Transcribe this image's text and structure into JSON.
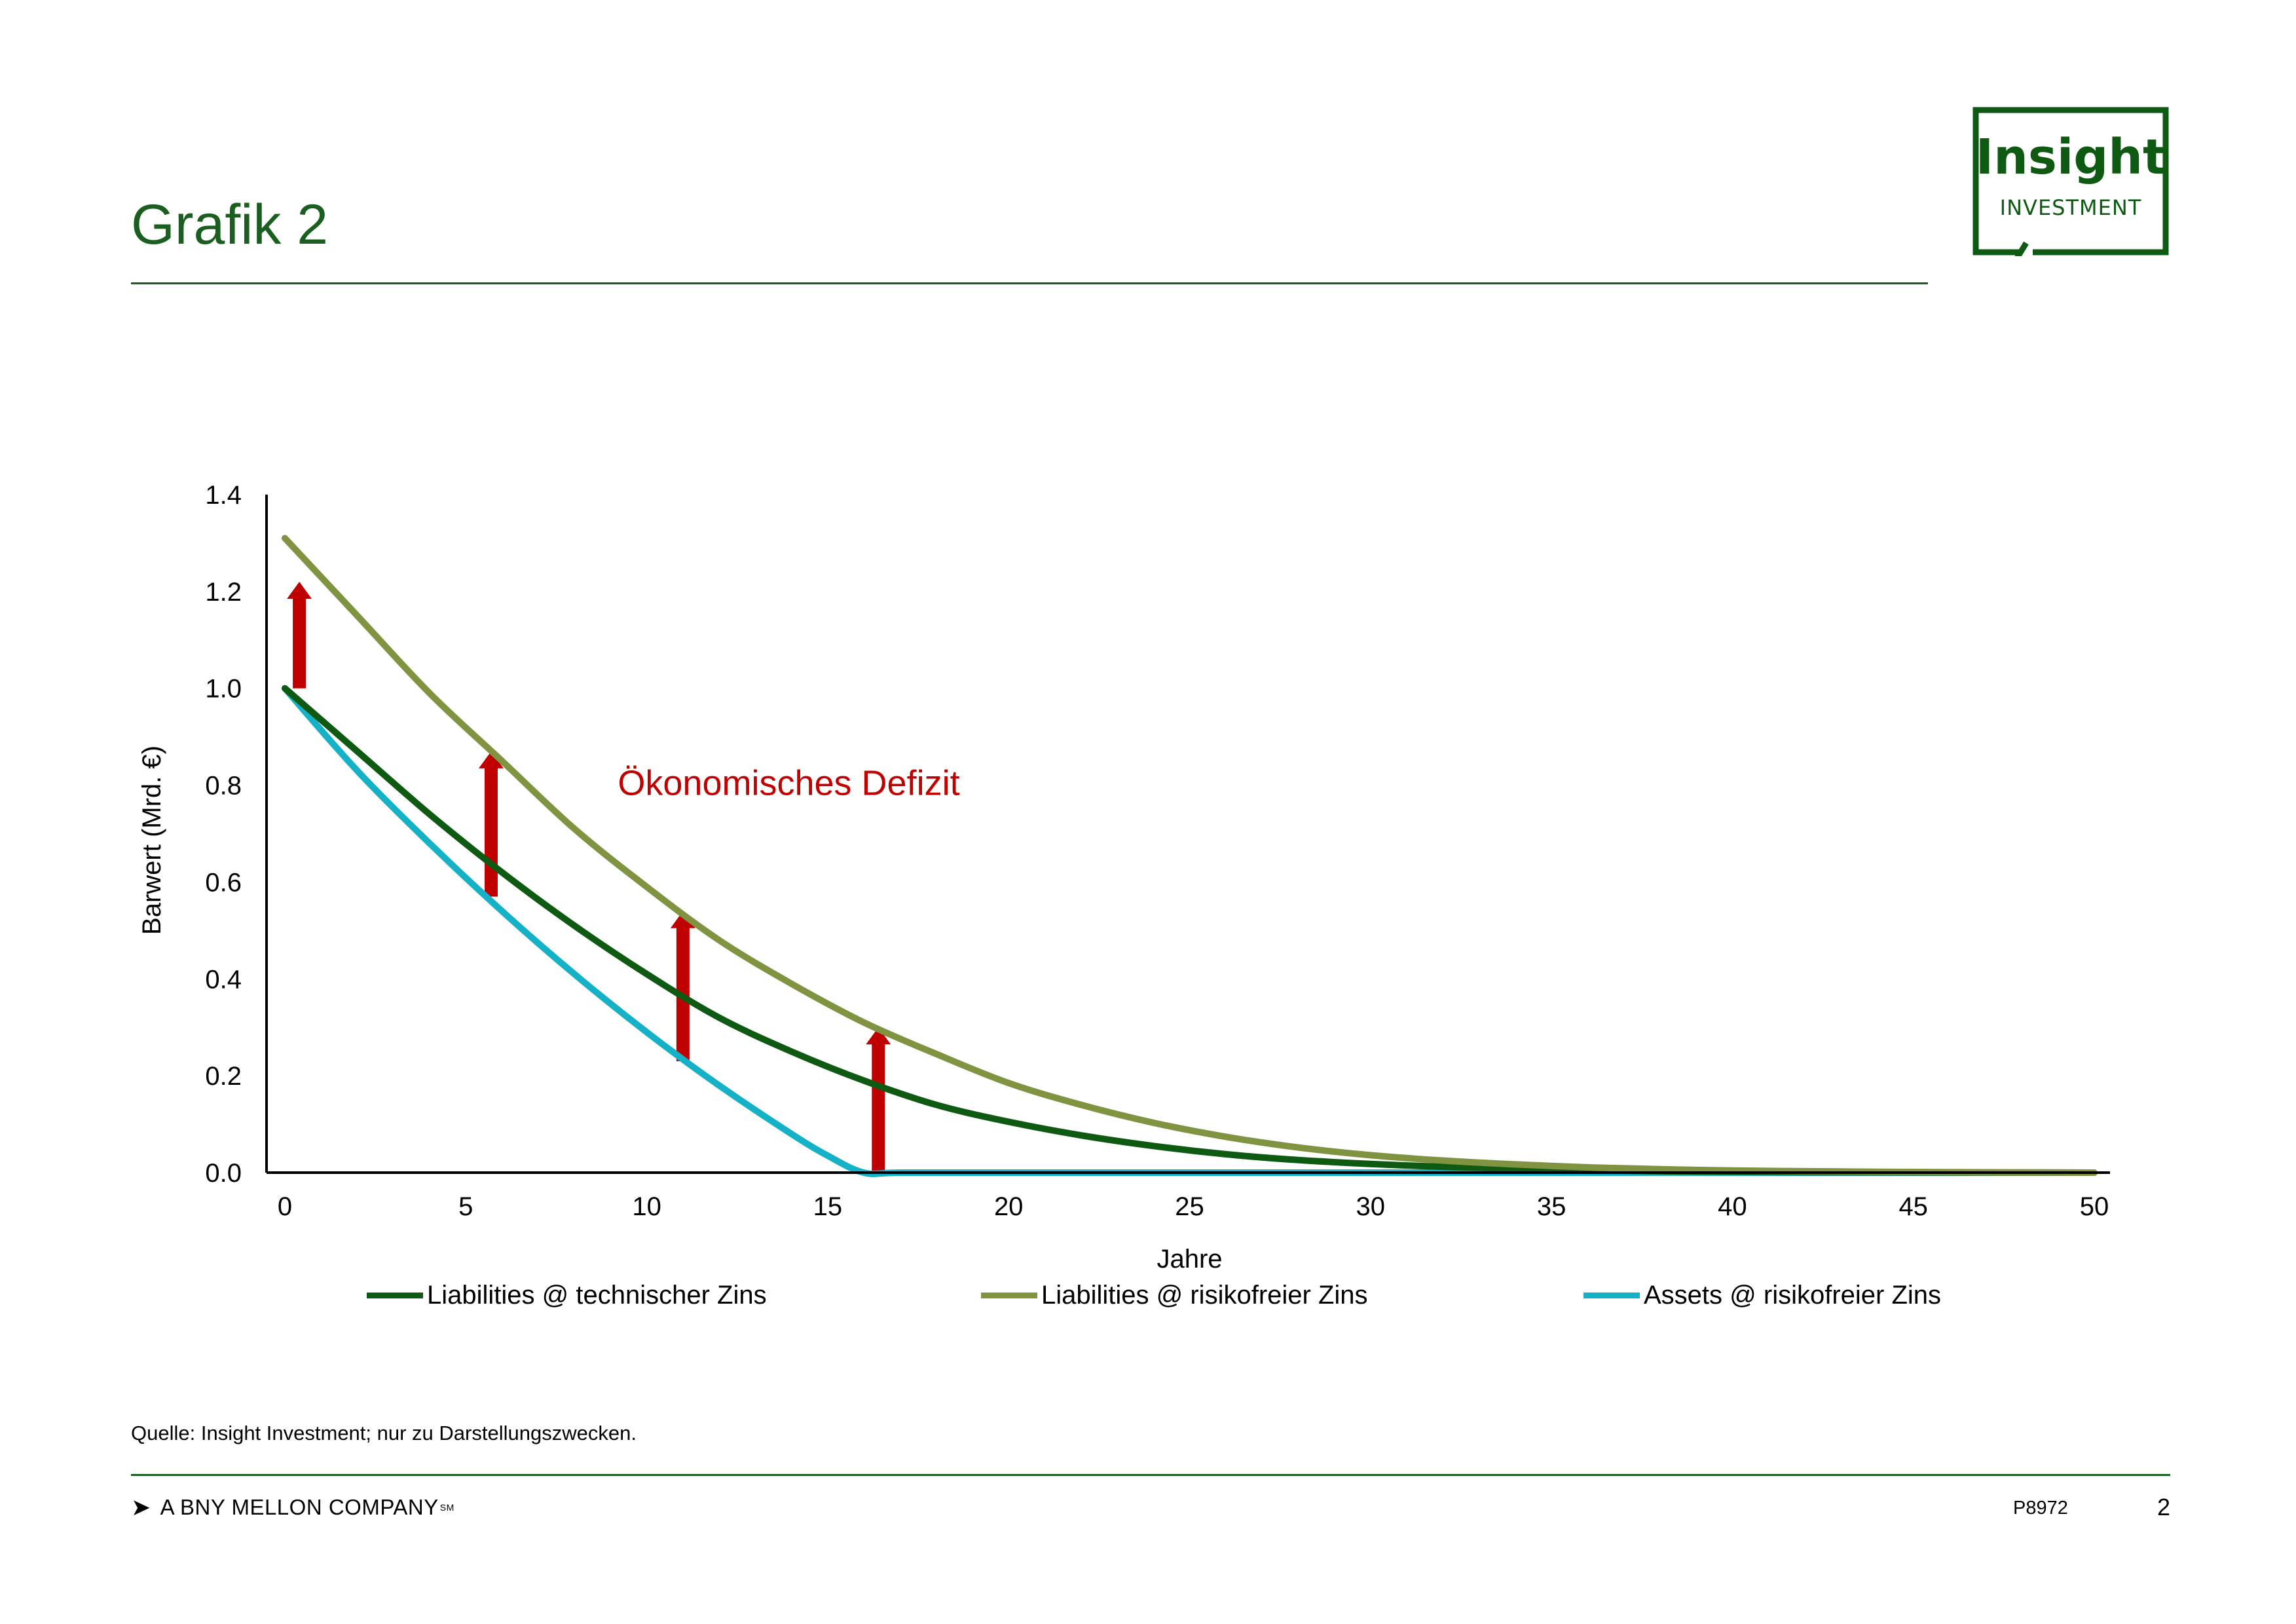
{
  "header": {
    "title": "Grafik 2"
  },
  "logo": {
    "line1": "Insight",
    "line2": "INVESTMENT"
  },
  "chart_data": {
    "type": "line",
    "title": "",
    "xlabel": "Jahre",
    "ylabel": "Barwert (Mrd. €)",
    "xlim": [
      0,
      50
    ],
    "ylim": [
      0,
      1.4
    ],
    "x_ticks": [
      "0",
      "5",
      "10",
      "15",
      "20",
      "25",
      "30",
      "35",
      "40",
      "45",
      "50"
    ],
    "y_ticks": [
      "0.0",
      "0.2",
      "0.4",
      "0.6",
      "0.8",
      "1.0",
      "1.2",
      "1.4"
    ],
    "x_tick_values": [
      0,
      5,
      10,
      15,
      20,
      25,
      30,
      35,
      40,
      45,
      50
    ],
    "y_tick_values": [
      0,
      0.2,
      0.4,
      0.6,
      0.8,
      1.0,
      1.2,
      1.4
    ],
    "grid": false,
    "legend_position": "bottom",
    "series": [
      {
        "name": "Liabilities @ technischer Zins",
        "color": "#0f5a12",
        "x": [
          0,
          2,
          4,
          6,
          8,
          10,
          12,
          14,
          16,
          18,
          20,
          22,
          24,
          26,
          28,
          30,
          32,
          34,
          36,
          38,
          40,
          42,
          44,
          46,
          48,
          50
        ],
        "y": [
          1.0,
          0.87,
          0.74,
          0.62,
          0.51,
          0.41,
          0.32,
          0.25,
          0.19,
          0.14,
          0.105,
          0.077,
          0.055,
          0.038,
          0.026,
          0.018,
          0.012,
          0.008,
          0.005,
          0.003,
          0.002,
          0.0012,
          0.0007,
          0.0004,
          0.0002,
          0.0
        ]
      },
      {
        "name": "Liabilities @ risikofreier Zins",
        "color": "#7f9341",
        "x": [
          0,
          2,
          4,
          6,
          8,
          10,
          12,
          14,
          16,
          18,
          20,
          22,
          24,
          26,
          28,
          30,
          32,
          34,
          36,
          38,
          40,
          42,
          44,
          46,
          48,
          50
        ],
        "y": [
          1.31,
          1.15,
          0.99,
          0.85,
          0.71,
          0.59,
          0.48,
          0.39,
          0.31,
          0.245,
          0.185,
          0.14,
          0.103,
          0.074,
          0.052,
          0.036,
          0.025,
          0.017,
          0.011,
          0.007,
          0.0045,
          0.0028,
          0.0017,
          0.001,
          0.0005,
          0.0
        ]
      },
      {
        "name": "Assets @ risikofreier Zins",
        "color": "#15b1c7",
        "x": [
          0,
          2,
          4,
          6,
          8,
          10,
          12,
          14,
          15,
          16,
          17,
          20,
          25,
          30,
          35,
          40,
          45,
          50
        ],
        "y": [
          1.0,
          0.83,
          0.68,
          0.54,
          0.41,
          0.29,
          0.18,
          0.08,
          0.035,
          0.0,
          0.0,
          0.0,
          0.0,
          0.0,
          0.0,
          0.0,
          0.0,
          0.0
        ]
      }
    ],
    "arrows": [
      {
        "x": 0.4,
        "from": 1.0,
        "to": 1.22
      },
      {
        "x": 5.7,
        "from": 0.57,
        "to": 0.87
      },
      {
        "x": 11.0,
        "from": 0.23,
        "to": 0.54
      },
      {
        "x": 16.4,
        "from": 0.0,
        "to": 0.3
      }
    ],
    "arrow_color": "#c00000",
    "annotations": [
      {
        "text": "Ökonomisches Defizit",
        "x": 9.2,
        "y": 0.78,
        "color": "#c00000"
      }
    ]
  },
  "footer": {
    "source": "Quelle: Insight Investment; nur zu Darstellungszwecken.",
    "company_arrow": "➤",
    "company": "A BNY MELLON COMPANY",
    "company_mark": "SM",
    "code": "P8972",
    "page": "2"
  }
}
